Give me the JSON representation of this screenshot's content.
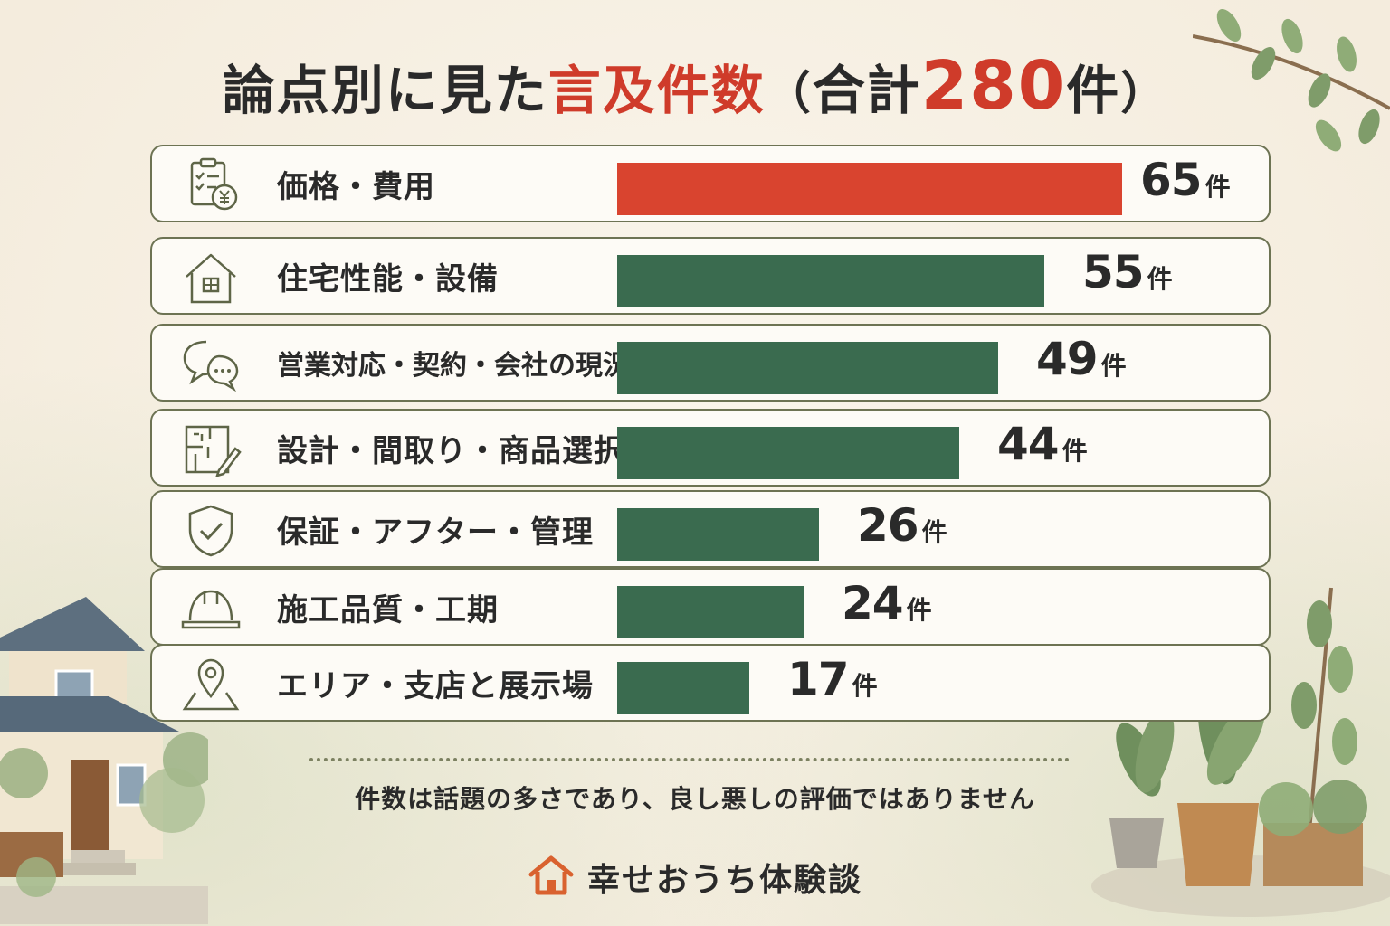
{
  "title": {
    "prefix": "論点別に見た",
    "accent": "言及件数",
    "paren_open": "（",
    "total_label": "合計",
    "total_value": "280",
    "total_unit": "件",
    "paren_close": "）"
  },
  "chart_data": {
    "type": "bar",
    "orientation": "horizontal",
    "categories": [
      "価格・費用",
      "住宅性能・設備",
      "営業対応・契約・会社の現況",
      "設計・間取り・商品選択",
      "保証・アフター・管理",
      "施工品質・工期",
      "エリア・支店と展示場"
    ],
    "values": [
      65,
      55,
      49,
      44,
      26,
      24,
      17
    ],
    "value_unit": "件",
    "highlight_index": 0,
    "highlight_color": "#d9442f",
    "bar_color": "#3a6b4f",
    "total": 280
  },
  "icons": [
    "clipboard-yen-icon",
    "house-icon",
    "chat-bubbles-icon",
    "floorplan-pencil-icon",
    "shield-check-icon",
    "hard-hat-icon",
    "map-pin-icon"
  ],
  "footer": {
    "note": "件数は話題の多さであり、良し悪しの評価ではありません",
    "brand": "幸せおうち体験談",
    "brand_icon": "house-logo-icon",
    "brand_color": "#d9622f"
  }
}
